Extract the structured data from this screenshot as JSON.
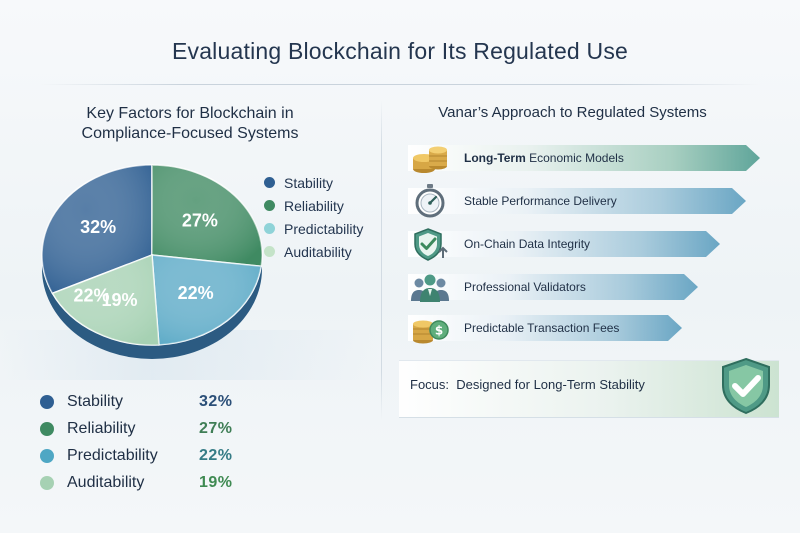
{
  "page": {
    "title": "Evaluating Blockchain for Its Regulated Use"
  },
  "left": {
    "title_lines": [
      "Key Factors for Blockchain in",
      "Compliance-Focused Systems"
    ]
  },
  "chart_data": {
    "type": "pie",
    "title": "Key Factors for Blockchain in Compliance-Focused Systems",
    "categories": [
      "Stability",
      "Reliability",
      "Predictability",
      "Auditability"
    ],
    "values": [
      32,
      27,
      22,
      19
    ],
    "colors": [
      "#2f5f92",
      "#3f8a62",
      "#5aa9c6",
      "#a6d1b3"
    ],
    "labels": [
      "32%",
      "27%",
      "22%",
      "19%"
    ],
    "slice_label_values": [
      "32%",
      "27%",
      "22%",
      "22%",
      "19%"
    ],
    "legend": "right"
  },
  "bottom_legend": [
    {
      "label": "Stability",
      "value": "32%",
      "color": "#2f5f92",
      "value_color": "#2b4f78"
    },
    {
      "label": "Reliability",
      "value": "27%",
      "color": "#3f8a62",
      "value_color": "#3f7e56"
    },
    {
      "label": "Predictability",
      "value": "22%",
      "color": "#4ea7c4",
      "value_color": "#357c86"
    },
    {
      "label": "Auditability",
      "value": "19%",
      "color": "#a6d1b3",
      "value_color": "#3f8a52"
    }
  ],
  "right": {
    "title": "Vanar’s Approach to Regulated Systems",
    "items": [
      {
        "bold": "Long-Term",
        "text": " Economic Models",
        "icon": "coin-stack-icon",
        "style": "green"
      },
      {
        "bold": "",
        "text": "Stable Performance Delivery",
        "icon": "stopwatch-icon",
        "style": "blue"
      },
      {
        "bold": "",
        "text": "On-Chain Data Integrity",
        "icon": "shield-check-icon",
        "style": "blue"
      },
      {
        "bold": "",
        "text": "Professional Validators",
        "icon": "people-icon",
        "style": "blue"
      },
      {
        "bold": "",
        "text": "Predictable Transaction Fees",
        "icon": "dollar-coins-icon",
        "style": "blue"
      }
    ],
    "focus_label": "Focus:",
    "focus_text": "Designed for Long-Term Stability"
  }
}
